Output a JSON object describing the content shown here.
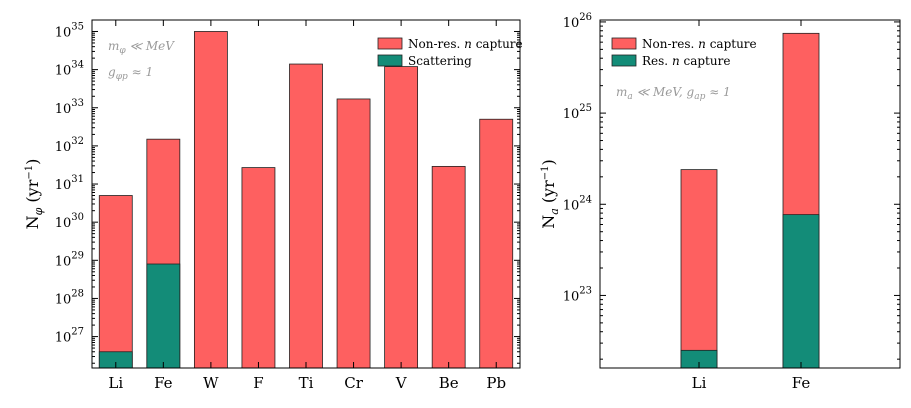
{
  "colors": {
    "nonres": "#fe6060",
    "scatter": "#138c78",
    "note": "#9a9a9a"
  },
  "chart_data": [
    {
      "type": "bar",
      "stacked": true,
      "scale": "log",
      "ylabel": "N_φ (yr⁻¹)",
      "ylim": [
        1.5e+26,
        2e+35
      ],
      "categories": [
        "Li",
        "Fe",
        "W",
        "F",
        "Ti",
        "Cr",
        "V",
        "Be",
        "Pb"
      ],
      "series": [
        {
          "name": "Non-res. n capture",
          "color_key": "nonres",
          "values": [
            5e+30,
            1.5e+32,
            1e+35,
            2.7e+31,
            1.4e+34,
            1.7e+33,
            1.2e+34,
            2.9e+31,
            5e+32
          ]
        },
        {
          "name": "Scattering",
          "color_key": "scatter",
          "values": [
            4e+26,
            8e+28,
            null,
            null,
            null,
            null,
            null,
            null,
            null
          ]
        }
      ],
      "legend": {
        "position": "top-right"
      },
      "annotations": [
        "m_φ ≪ MeV",
        "g_φp ≈ 1"
      ],
      "yticks": [
        {
          "value": 1e+27,
          "base": "10",
          "exp": "27"
        },
        {
          "value": 1e+28,
          "base": "10",
          "exp": "28"
        },
        {
          "value": 1e+29,
          "base": "10",
          "exp": "29"
        },
        {
          "value": 1e+30,
          "base": "10",
          "exp": "30"
        },
        {
          "value": 1e+31,
          "base": "10",
          "exp": "31"
        },
        {
          "value": 1e+32,
          "base": "10",
          "exp": "32"
        },
        {
          "value": 1e+33,
          "base": "10",
          "exp": "33"
        },
        {
          "value": 1e+34,
          "base": "10",
          "exp": "34"
        },
        {
          "value": 1e+35,
          "base": "10",
          "exp": "35"
        }
      ]
    },
    {
      "type": "bar",
      "stacked": true,
      "scale": "log",
      "ylabel": "N_a (yr⁻¹)",
      "ylim": [
        1.6e+22,
        1.05e+26
      ],
      "categories": [
        "Li",
        "Fe"
      ],
      "series": [
        {
          "name": "Non-res. n capture",
          "color_key": "nonres",
          "values": [
            2.4e+24,
            7.5e+25
          ]
        },
        {
          "name": "Res. n capture",
          "color_key": "scatter",
          "values": [
            2.5e+22,
            7.7e+23
          ]
        }
      ],
      "legend": {
        "position": "top-left"
      },
      "annotations": [
        "m_a ≪ MeV, g_ap ≈ 1"
      ],
      "yticks": [
        {
          "value": 1e+23,
          "base": "10",
          "exp": "23"
        },
        {
          "value": 1e+24,
          "base": "10",
          "exp": "24"
        },
        {
          "value": 1e+25,
          "base": "10",
          "exp": "25"
        },
        {
          "value": 1e+26,
          "base": "10",
          "exp": "26"
        }
      ]
    }
  ]
}
